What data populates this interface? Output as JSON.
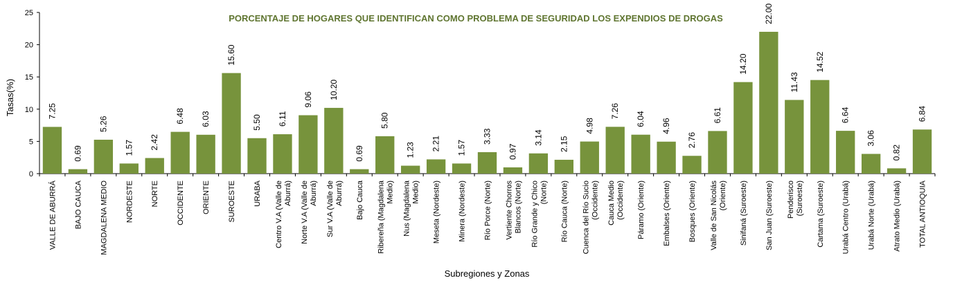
{
  "chart_data": {
    "type": "bar",
    "title": "PORCENTAJE DE HOGARES QUE IDENTIFICAN COMO PROBLEMA DE SEGURIDAD LOS EXPENDIOS DE DROGAS",
    "xlabel": "Subregiones y Zonas",
    "ylabel": "Tasas(%)",
    "ylim": [
      0,
      25
    ],
    "yticks": [
      0,
      5,
      10,
      15,
      20,
      25
    ],
    "grid": false,
    "legend": "none",
    "bar_color": "#77933c",
    "title_color": "#5f7530",
    "categories": [
      [
        "VALLE DE ABURRÁ"
      ],
      [
        "BAJO CAUCA"
      ],
      [
        "MAGDALENA MEDIO"
      ],
      [
        "NORDESTE"
      ],
      [
        "NORTE"
      ],
      [
        "OCCIDENTE"
      ],
      [
        "ORIENTE"
      ],
      [
        "SUROESTE"
      ],
      [
        "URABA"
      ],
      [
        "Centro V.A (Valle de",
        "Aburrá)"
      ],
      [
        "Norte V.A (Valle de",
        "Aburrá)"
      ],
      [
        "Sur V.A (Valle de",
        "Aburrá)"
      ],
      [
        "Bajo Cauca"
      ],
      [
        "Ribereña (Magdalena",
        "Medio)"
      ],
      [
        "Nus (Magdalena",
        "Medio)"
      ],
      [
        "Meseta (Nordeste)"
      ],
      [
        "Minera (Nordeste)"
      ],
      [
        "Río Porce (Norte)"
      ],
      [
        "Vertiente Chorros",
        "Blancos (Norte)"
      ],
      [
        "Río Grande y Chico",
        "(Norte)"
      ],
      [
        "Río Cauca (Norte)"
      ],
      [
        "Cuenca del Río Sucio",
        "(Occidente)"
      ],
      [
        "Cauca Medio",
        "(Occidente)"
      ],
      [
        "Páramo (Oriente)"
      ],
      [
        "Embalses (Oriente)"
      ],
      [
        "Bosques (Oriente)"
      ],
      [
        "Valle de San Nicolás",
        "(Oriente)"
      ],
      [
        "Sinifaná (Suroeste)"
      ],
      [
        "San Juan (Suroeste)"
      ],
      [
        "Penderisco",
        "(Suroeste)"
      ],
      [
        "Cartama (Suroeste)"
      ],
      [
        "Urabá Centro (Urabá)"
      ],
      [
        "Urabá Norte (Urabá)"
      ],
      [
        "Atrato Medio (Urabá)"
      ],
      [
        "TOTAL ANTIOQUIA"
      ]
    ],
    "values": [
      7.25,
      0.69,
      5.26,
      1.57,
      2.42,
      6.48,
      6.03,
      15.6,
      5.5,
      6.11,
      9.06,
      10.2,
      0.69,
      5.8,
      1.23,
      2.21,
      1.57,
      3.33,
      0.97,
      3.14,
      2.15,
      4.98,
      7.26,
      6.04,
      4.96,
      2.76,
      6.61,
      14.2,
      22.0,
      11.43,
      14.52,
      6.64,
      3.06,
      0.82,
      6.84
    ],
    "value_labels": [
      "7.25",
      "0.69",
      "5.26",
      "1.57",
      "2.42",
      "6.48",
      "6.03",
      "15.60",
      "5.50",
      "6.11",
      "9.06",
      "10.20",
      "0.69",
      "5.80",
      "1.23",
      "2.21",
      "1.57",
      "3.33",
      "0.97",
      "3.14",
      "2.15",
      "4.98",
      "7.26",
      "6.04",
      "4.96",
      "2.76",
      "6.61",
      "14.20",
      "22.00",
      "11.43",
      "14.52",
      "6.64",
      "3.06",
      "0.82",
      "6.84"
    ]
  }
}
